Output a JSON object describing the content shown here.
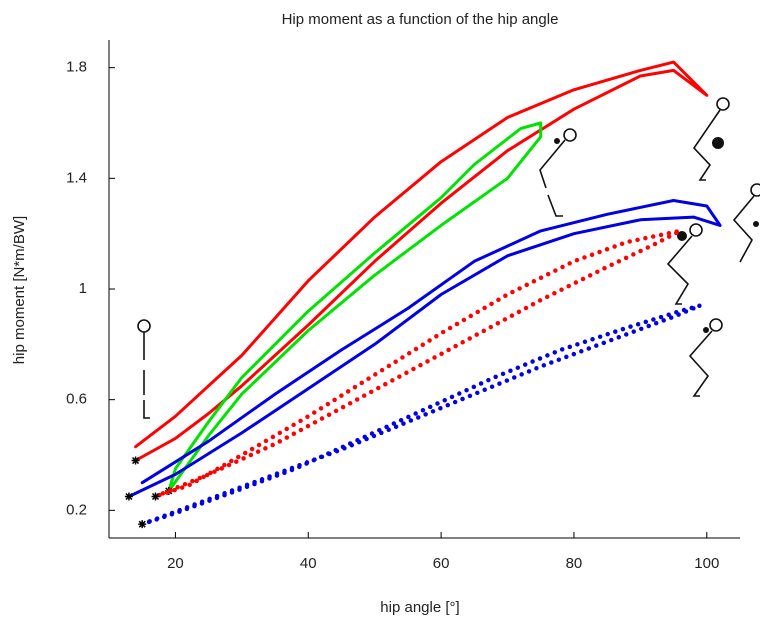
{
  "chart_data": {
    "type": "line",
    "title": "Hip moment as a function of the hip angle",
    "x_label": "hip angle [°]",
    "y_label": "hip moment [N*m/BW]",
    "xlim": [
      10,
      105
    ],
    "ylim": [
      0.1,
      1.9
    ],
    "xticks": [
      20,
      40,
      60,
      80,
      100
    ],
    "yticks": [
      0.2,
      0.6,
      1,
      1.4,
      1.8
    ],
    "grid": false,
    "series": [
      {
        "color": "#ff0000",
        "style": "solid",
        "x": [
          14,
          20,
          25,
          30,
          40,
          50,
          60,
          70,
          80,
          90,
          95,
          100,
          95,
          90,
          80,
          70,
          60,
          50,
          40,
          30,
          25,
          20,
          14
        ],
        "values": [
          0.38,
          0.46,
          0.55,
          0.65,
          0.87,
          1.1,
          1.31,
          1.5,
          1.65,
          1.77,
          1.79,
          1.7,
          1.82,
          1.79,
          1.72,
          1.62,
          1.46,
          1.26,
          1.03,
          0.76,
          0.65,
          0.54,
          0.43
        ]
      },
      {
        "color": "#00e000",
        "style": "solid",
        "x": [
          19,
          22,
          25,
          30,
          40,
          50,
          60,
          70,
          75,
          75,
          72,
          65,
          60,
          50,
          40,
          30,
          25,
          20,
          19
        ],
        "values": [
          0.27,
          0.37,
          0.47,
          0.62,
          0.85,
          1.05,
          1.23,
          1.4,
          1.55,
          1.6,
          1.58,
          1.45,
          1.33,
          1.13,
          0.92,
          0.68,
          0.52,
          0.35,
          0.27
        ]
      },
      {
        "color": "#0000e0",
        "style": "solid",
        "x": [
          13,
          20,
          30,
          40,
          50,
          60,
          70,
          80,
          90,
          98,
          102,
          100,
          95,
          85,
          75,
          65,
          55,
          45,
          35,
          25,
          15
        ],
        "values": [
          0.25,
          0.33,
          0.48,
          0.64,
          0.8,
          0.98,
          1.12,
          1.2,
          1.25,
          1.26,
          1.23,
          1.3,
          1.32,
          1.27,
          1.21,
          1.1,
          0.93,
          0.78,
          0.62,
          0.45,
          0.3
        ]
      },
      {
        "color": "#ff0000",
        "style": "dotted",
        "x": [
          17,
          25,
          35,
          45,
          55,
          65,
          75,
          85,
          92,
          96,
          94,
          88,
          80,
          70,
          60,
          50,
          40,
          30,
          22,
          17
        ],
        "values": [
          0.25,
          0.33,
          0.44,
          0.57,
          0.7,
          0.83,
          0.96,
          1.08,
          1.16,
          1.21,
          1.2,
          1.17,
          1.1,
          0.98,
          0.84,
          0.69,
          0.54,
          0.4,
          0.29,
          0.25
        ]
      },
      {
        "color": "#0000e0",
        "style": "dotted",
        "x": [
          15,
          25,
          35,
          45,
          55,
          65,
          75,
          85,
          95,
          99,
          96,
          88,
          78,
          68,
          58,
          48,
          38,
          28,
          20,
          15
        ],
        "values": [
          0.15,
          0.24,
          0.33,
          0.42,
          0.52,
          0.62,
          0.72,
          0.81,
          0.9,
          0.94,
          0.92,
          0.86,
          0.78,
          0.68,
          0.57,
          0.46,
          0.35,
          0.26,
          0.19,
          0.15
        ]
      }
    ]
  }
}
